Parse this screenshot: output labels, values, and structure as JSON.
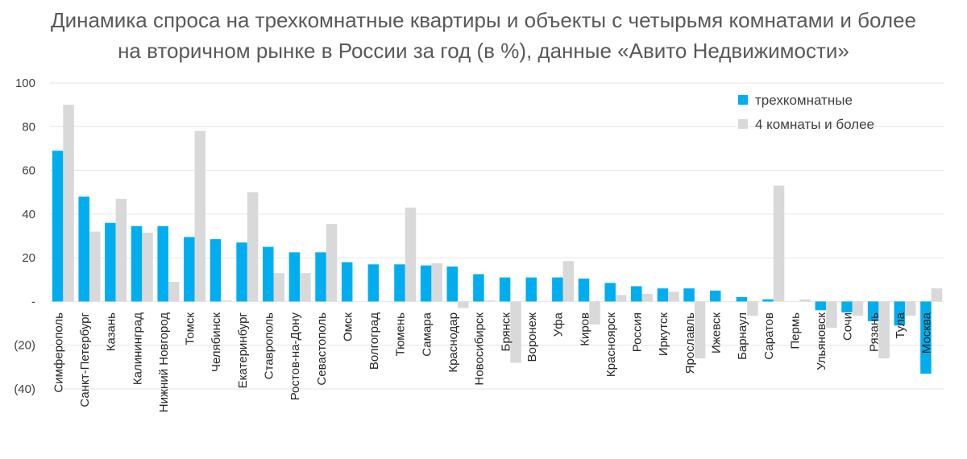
{
  "chart_data": {
    "type": "bar",
    "title_line1": "Динамика спроса на трехкомнатные квартиры и объекты с четырьмя комнатами и более",
    "title_line2": "на вторичном рынке в России за год (в %), данные «Авито Недвижимости»",
    "xlabel": "",
    "ylabel": "",
    "ylim": [
      -40,
      100
    ],
    "yticks": [
      100,
      80,
      60,
      40,
      20,
      0,
      -20,
      -40
    ],
    "ytick_labels": [
      "100",
      "80",
      "60",
      "40",
      "20",
      "-",
      "(20)",
      "(40)"
    ],
    "grid": true,
    "legend_position": "top-right",
    "categories": [
      "Симферополь",
      "Санкт-Петербург",
      "Казань",
      "Калининград",
      "Нижний Новгород",
      "Томск",
      "Челябинск",
      "Екатеринбург",
      "Ставрополь",
      "Ростов-на-Дону",
      "Севастополь",
      "Омск",
      "Волгоград",
      "Тюмень",
      "Самара",
      "Краснодар",
      "Новосибирск",
      "Брянск",
      "Воронеж",
      "Уфа",
      "Киров",
      "Красноярск",
      "Россия",
      "Иркутск",
      "Ярославль",
      "Ижевск",
      "Барнаул",
      "Саратов",
      "Пермь",
      "Ульяновск",
      "Сочи",
      "Рязань",
      "Тула",
      "Москва"
    ],
    "series": [
      {
        "name": "трехкомнатные",
        "color": "#00AEEF",
        "values": [
          69,
          48,
          36,
          34.5,
          34.5,
          29.5,
          28.5,
          27,
          25,
          22.5,
          22.5,
          18,
          17,
          17,
          16.5,
          16,
          12.5,
          11,
          11,
          11,
          10.5,
          8.5,
          7,
          6,
          6,
          5,
          2,
          1,
          0,
          -4,
          -5,
          -9,
          -11,
          -33
        ]
      },
      {
        "name": "4 комнаты и более",
        "color": "#D9D9D9",
        "values": [
          90,
          32,
          47,
          31.5,
          9,
          78,
          0.5,
          50,
          13,
          13,
          35.5,
          0,
          0,
          43,
          17.5,
          -3,
          0.5,
          -28,
          0,
          18.5,
          -10.5,
          3,
          3.5,
          4.5,
          -26,
          0,
          -6.5,
          53,
          1,
          -12,
          -6.5,
          -26,
          -6.5,
          6
        ]
      }
    ]
  }
}
